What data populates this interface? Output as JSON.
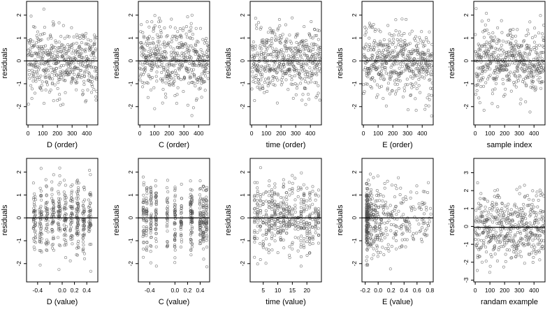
{
  "figure": {
    "layout": "2 rows x 5 columns"
  },
  "colors": {
    "points": "#505050",
    "zero_line": "#000000",
    "axes": "#000000"
  },
  "chart_data": [
    {
      "type": "scatter",
      "xlabel": "D (order)",
      "ylabel": "residuals",
      "xlim": [
        -10,
        475
      ],
      "ylim": [
        -2.8,
        2.6
      ],
      "xticks": [
        0,
        100,
        200,
        300,
        400
      ],
      "yticks": [
        -2,
        -1,
        0,
        1,
        2
      ],
      "reference_line_y": 0,
      "n_points": 470,
      "x_domain": [
        1,
        470
      ],
      "y_sd": 0.75,
      "pattern": "order"
    },
    {
      "type": "scatter",
      "xlabel": "C (order)",
      "ylabel": "residuals",
      "xlim": [
        -10,
        475
      ],
      "ylim": [
        -2.8,
        2.6
      ],
      "xticks": [
        0,
        100,
        200,
        300,
        400
      ],
      "yticks": [
        -2,
        -1,
        0,
        1,
        2
      ],
      "reference_line_y": 0,
      "n_points": 470,
      "x_domain": [
        1,
        470
      ],
      "y_sd": 0.75,
      "pattern": "order"
    },
    {
      "type": "scatter",
      "xlabel": "time (order)",
      "ylabel": "residuals",
      "xlim": [
        -10,
        475
      ],
      "ylim": [
        -2.8,
        2.6
      ],
      "xticks": [
        0,
        100,
        200,
        300,
        400
      ],
      "yticks": [
        -2,
        -1,
        0,
        1,
        2
      ],
      "reference_line_y": 0,
      "n_points": 470,
      "x_domain": [
        1,
        470
      ],
      "y_sd": 0.75,
      "pattern": "order"
    },
    {
      "type": "scatter",
      "xlabel": "E (order)",
      "ylabel": "residuals",
      "xlim": [
        -10,
        475
      ],
      "ylim": [
        -2.8,
        2.6
      ],
      "xticks": [
        0,
        100,
        200,
        300,
        400
      ],
      "yticks": [
        -2,
        -1,
        0,
        1,
        2
      ],
      "reference_line_y": 0,
      "n_points": 470,
      "x_domain": [
        1,
        470
      ],
      "y_sd": 0.75,
      "pattern": "order"
    },
    {
      "type": "scatter",
      "xlabel": "sample index",
      "ylabel": "residuals",
      "xlim": [
        -10,
        475
      ],
      "ylim": [
        -2.8,
        2.6
      ],
      "xticks": [
        0,
        100,
        200,
        300,
        400
      ],
      "yticks": [
        -2,
        -1,
        0,
        1,
        2
      ],
      "reference_line_y": 0,
      "n_points": 470,
      "x_domain": [
        1,
        470
      ],
      "y_sd": 0.75,
      "pattern": "order"
    },
    {
      "type": "scatter",
      "xlabel": "D (value)",
      "ylabel": "residuals",
      "xlim": [
        -0.58,
        0.58
      ],
      "ylim": [
        -2.8,
        2.6
      ],
      "xticks": [
        -0.4,
        -0.2,
        0.0,
        0.2,
        0.4
      ],
      "xtick_labels": [
        "-0.4",
        "",
        "0.0",
        "0.2",
        "0.4"
      ],
      "yticks": [
        -2,
        -1,
        0,
        1,
        2
      ],
      "reference_line_y": 0,
      "n_points": 470,
      "x_levels": [
        -0.45,
        -0.35,
        -0.25,
        -0.15,
        -0.05,
        0.05,
        0.15,
        0.25,
        0.35,
        0.45
      ],
      "x_jitter": 0.02,
      "y_sd": 0.75,
      "pattern": "discrete"
    },
    {
      "type": "scatter",
      "xlabel": "C (value)",
      "ylabel": "residuals",
      "xlim": [
        -0.58,
        0.55
      ],
      "ylim": [
        -2.8,
        2.6
      ],
      "xticks": [
        -0.4,
        0.0,
        0.2,
        0.4
      ],
      "xtick_labels": [
        "-0.4",
        "0.0",
        "0.2",
        "0.4"
      ],
      "yticks": [
        -2,
        -1,
        0,
        1,
        2
      ],
      "reference_line_y": 0,
      "n_points": 470,
      "x_levels": [
        -0.5,
        -0.45,
        -0.38,
        -0.3,
        -0.12,
        0.0,
        0.1,
        0.25,
        0.27,
        0.4,
        0.45,
        0.5
      ],
      "x_jitter": 0.008,
      "y_sd": 0.75,
      "pattern": "discrete"
    },
    {
      "type": "scatter",
      "xlabel": "time (value)",
      "ylabel": "residuals",
      "xlim": [
        0.5,
        25
      ],
      "ylim": [
        -2.8,
        2.6
      ],
      "xticks": [
        5,
        10,
        15,
        20
      ],
      "yticks": [
        -2,
        -1,
        0,
        1,
        2
      ],
      "reference_line_y": 0,
      "n_points": 470,
      "x_levels": [
        2,
        3,
        4,
        5,
        6,
        7,
        8,
        9,
        10,
        11,
        12,
        13,
        14,
        15,
        16,
        17,
        18,
        19,
        20,
        21,
        22,
        23,
        24
      ],
      "x_jitter": 0.1,
      "y_sd": 0.75,
      "pattern": "discrete"
    },
    {
      "type": "scatter",
      "xlabel": "E (value)",
      "ylabel": "residuals",
      "xlim": [
        -0.25,
        0.85
      ],
      "ylim": [
        -2.8,
        2.6
      ],
      "xticks": [
        -0.2,
        0.0,
        0.2,
        0.4,
        0.6,
        0.8
      ],
      "xtick_labels": [
        "-0.2",
        "0.0",
        "0.2",
        "0.4",
        "0.6",
        "0.8"
      ],
      "yticks": [
        -2,
        -1,
        0,
        1,
        2
      ],
      "reference_line_y": 0,
      "n_points": 470,
      "x_domain": [
        -0.18,
        0.82
      ],
      "x_skew": "right",
      "y_sd": 0.75,
      "pattern": "skewed"
    },
    {
      "type": "scatter",
      "xlabel": "randam example",
      "ylabel": "residuals",
      "xlim": [
        -10,
        475
      ],
      "ylim": [
        -3.1,
        3.8
      ],
      "xticks": [
        0,
        100,
        200,
        300,
        400
      ],
      "yticks": [
        -3,
        -2,
        -1,
        0,
        1,
        2,
        3
      ],
      "reference_line_y": -0.05,
      "n_points": 470,
      "x_domain": [
        1,
        470
      ],
      "y_sd": 1.0,
      "pattern": "order"
    }
  ]
}
